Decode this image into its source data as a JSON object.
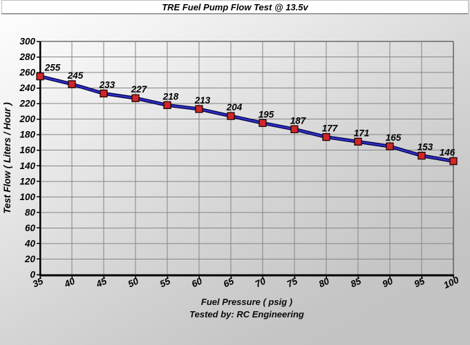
{
  "title_bar": {
    "title": "TRE Fuel Pump Flow Test @ 13.5v"
  },
  "footer": {
    "xlabel": "Fuel Pressure ( psig )",
    "tested_by": "Tested by: RC Engineering"
  },
  "chart_data": {
    "type": "line",
    "title": "TRE Fuel Pump Flow Test @ 13.5v",
    "xlabel": "Fuel Pressure ( psig )",
    "ylabel": "Test Flow ( Liters / Hour )",
    "annotation": "Tested by: RC Engineering",
    "x": [
      35,
      40,
      45,
      50,
      55,
      60,
      65,
      70,
      75,
      80,
      85,
      90,
      95,
      100
    ],
    "values": [
      255,
      245,
      233,
      227,
      218,
      213,
      204,
      195,
      187,
      177,
      171,
      165,
      153,
      146
    ],
    "xlim": [
      35,
      100
    ],
    "ylim": [
      0,
      300
    ],
    "x_tick_step": 5,
    "y_tick_step": 20,
    "grid": true,
    "legend": "none",
    "line_color": "#2f2fc4",
    "line_edge_color": "#000040",
    "marker_color": "#d02828",
    "marker_edge_color": "#1a0000",
    "grid_color": "#848484",
    "axis_color": "#000000"
  }
}
